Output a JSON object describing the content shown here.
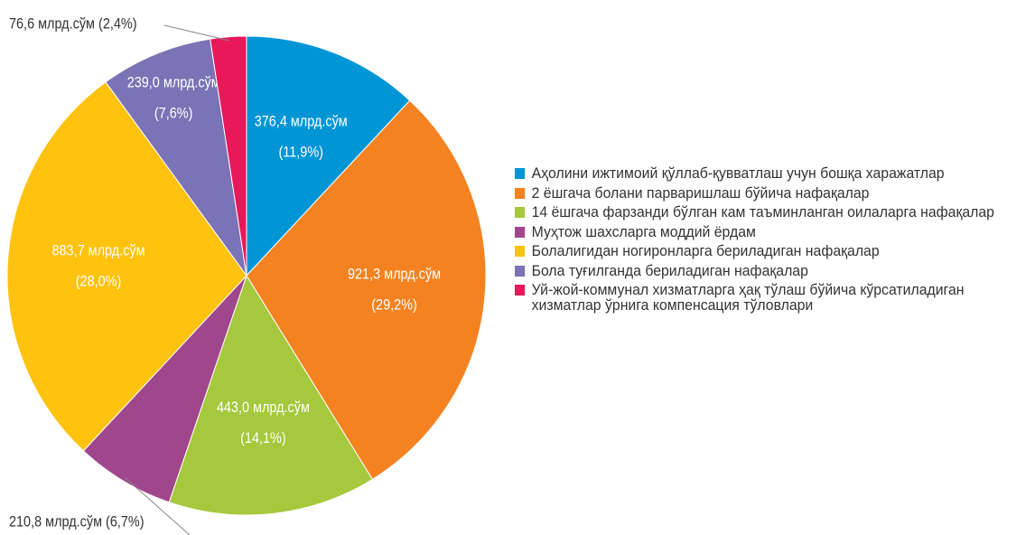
{
  "chart_data": {
    "type": "pie",
    "categories": [
      "Аҳолини ижтимоий қўллаб-қувватлаш учун бошқа харажатлар",
      "2 ёшгача болани парваришлаш бўйича нафақалар",
      "14 ёшгача фарзанди бўлган кам таъминланган оилаларга нафақалар",
      "Муҳтож шахсларга моддий ёрдам",
      "Болалигидан ногиронларга бериладиган нафақалар",
      "Бола туғилганда бериладиган нафақалар",
      "Уй-жой-коммунал хизматларга ҳақ тўлаш бўйича кўрсатиладиган хизматлар ўрнига компенсация тўловлари"
    ],
    "values": [
      376.4,
      921.3,
      443.0,
      210.8,
      883.7,
      239.0,
      76.6
    ],
    "value_labels": [
      "376,4 млрд.сўм",
      "921,3 млрд.сўм",
      "443,0 млрд.сўм",
      "210,8 млрд.сўм",
      "883,7 млрд.сўм",
      "239,0 млрд.сўм",
      "76,6 млрд.сўм"
    ],
    "percents": [
      11.9,
      29.2,
      14.1,
      6.7,
      28.0,
      7.6,
      2.4
    ],
    "percent_labels": [
      "(11,9%)",
      "(29,2%)",
      "(14,1%)",
      "(6,7%)",
      "(28,0%)",
      "(7,6%)",
      "(2,4%)"
    ],
    "colors": [
      "#0096d6",
      "#f58220",
      "#a6c83c",
      "#a0468c",
      "#ffc20e",
      "#7b73b5",
      "#e8185a"
    ],
    "legend": "right"
  }
}
